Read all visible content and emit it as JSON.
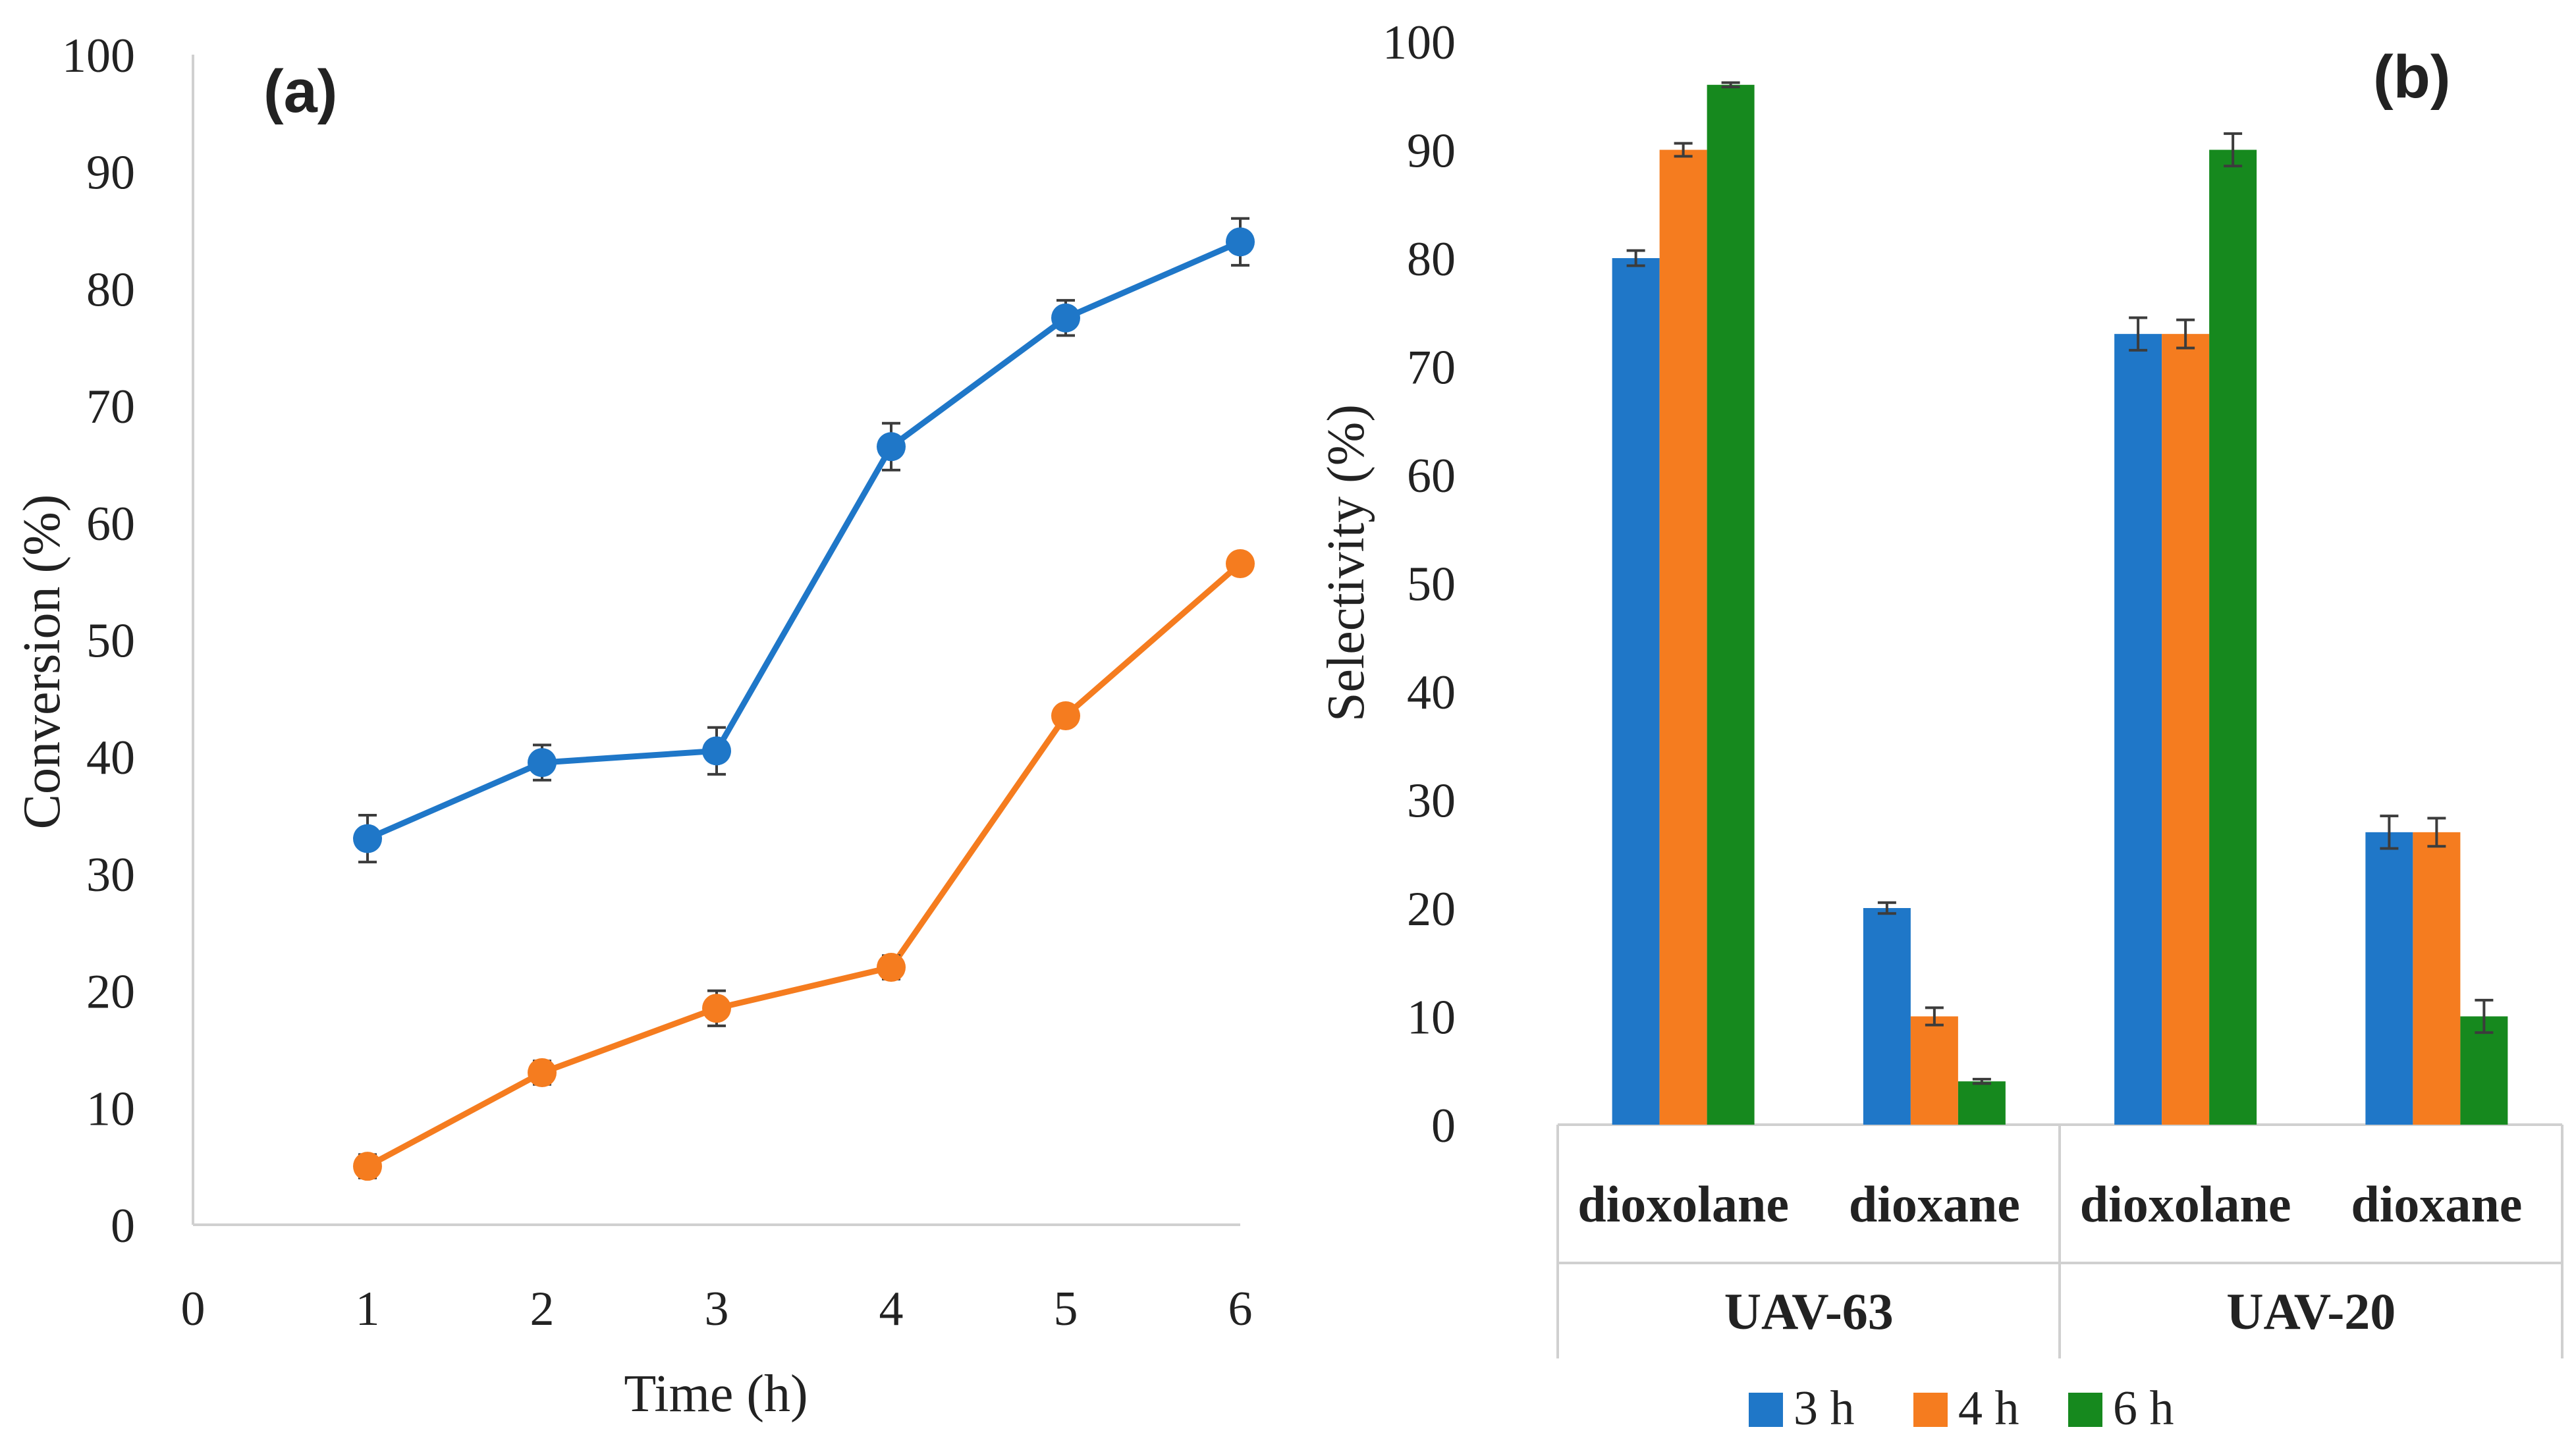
{
  "chart_data": [
    {
      "type": "line",
      "panel_label": "(a)",
      "xlabel": "Time (h)",
      "ylabel": "Conversion (%)",
      "xlim": [
        0,
        6
      ],
      "ylim": [
        0,
        100
      ],
      "x_ticks": [
        "0",
        "1",
        "2",
        "3",
        "4",
        "5",
        "6"
      ],
      "y_ticks": [
        "0",
        "10",
        "20",
        "30",
        "40",
        "50",
        "60",
        "70",
        "80",
        "90",
        "100"
      ],
      "grid": false,
      "legend": "none",
      "x": [
        1,
        2,
        3,
        4,
        5,
        6
      ],
      "series": [
        {
          "name": "UAV-63",
          "color": "#1F77C8",
          "values": [
            33,
            39.5,
            40.5,
            66.5,
            77.5,
            84
          ],
          "errors": [
            2,
            1.5,
            2,
            2,
            1.5,
            2
          ]
        },
        {
          "name": "UAV-20",
          "color": "#F57C1F",
          "values": [
            5,
            13,
            18.5,
            22,
            43.5,
            56.5
          ],
          "errors": [
            1,
            1,
            1.5,
            1,
            0,
            0
          ]
        }
      ]
    },
    {
      "type": "bar",
      "panel_label": "(b)",
      "ylabel": "Selectivity (%)",
      "ylim": [
        0,
        100
      ],
      "y_ticks": [
        "0",
        "10",
        "20",
        "30",
        "40",
        "50",
        "60",
        "70",
        "80",
        "90",
        "100"
      ],
      "grid": false,
      "legend": "bottom",
      "categories": [
        "dioxolane",
        "dioxane",
        "dioxolane",
        "dioxane"
      ],
      "groups": [
        "UAV-63",
        "UAV-20"
      ],
      "series": [
        {
          "name": "3 h",
          "color": "#1F77C8",
          "values": [
            80,
            20,
            73,
            27
          ],
          "errors": [
            0.7,
            0.5,
            1.5,
            1.5
          ]
        },
        {
          "name": "4 h",
          "color": "#F57C1F",
          "values": [
            90,
            10,
            73,
            27
          ],
          "errors": [
            0.6,
            0.8,
            1.3,
            1.3
          ]
        },
        {
          "name": "6 h",
          "color": "#16891E",
          "values": [
            96,
            4,
            90,
            10
          ],
          "errors": [
            0.2,
            0.2,
            1.5,
            1.5
          ]
        }
      ]
    }
  ]
}
